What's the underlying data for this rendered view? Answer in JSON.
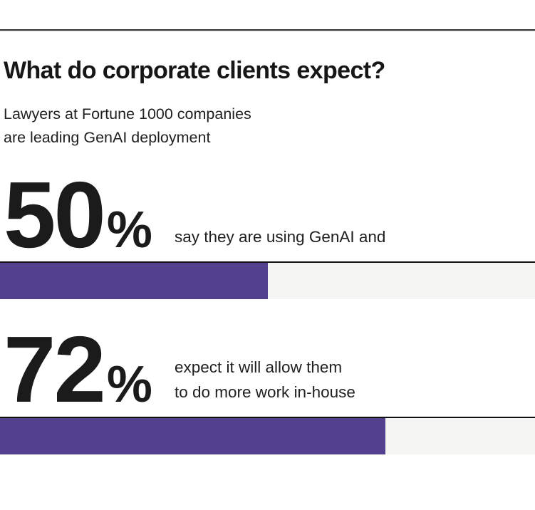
{
  "page": {
    "title": "What do corporate clients expect?",
    "subtitle_lines": [
      "Lawyers at Fortune 1000 companies",
      "are leading GenAI deployment"
    ]
  },
  "stats": [
    {
      "value": "50",
      "unit": "%",
      "desc_lines": [
        "say they are using GenAI and",
        ""
      ]
    },
    {
      "value": "72",
      "unit": "%",
      "desc_lines": [
        "expect it will allow them",
        "to do more work in-house"
      ]
    }
  ],
  "chart_data": {
    "type": "bar",
    "orientation": "horizontal",
    "title": "What do corporate clients expect?",
    "subtitle": "Lawyers at Fortune 1000 companies are leading GenAI deployment",
    "categories": [
      "say they are using GenAI and",
      "expect it will allow them to do more work in-house"
    ],
    "values": [
      50,
      72
    ],
    "unit": "%",
    "xlim": [
      0,
      100
    ],
    "grid": false,
    "legend": false,
    "bar_color": "#534190",
    "track_color": "#f5f5f4",
    "text_color": "#1b1b1b"
  }
}
